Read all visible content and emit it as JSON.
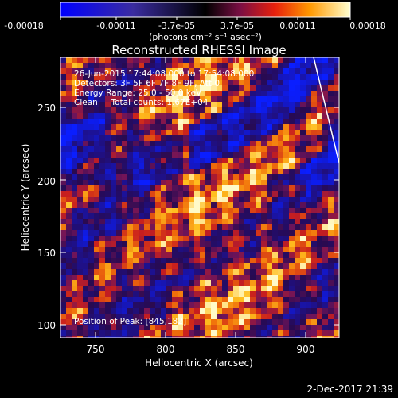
{
  "colorbar": {
    "tick_labels": [
      "-0.00018",
      "-0.00011",
      "-3.7e-05",
      "3.7e-05",
      "0.00011",
      "0.00018"
    ],
    "unit_label": "(photons cm⁻² s⁻¹ asec⁻²)",
    "range": [
      -0.00018,
      0.00018
    ]
  },
  "plot": {
    "title": "Reconstructed RHESSI Image",
    "xlabel": "Heliocentric X (arcsec)",
    "ylabel": "Heliocentric Y (arcsec)",
    "x_ticks": [
      "750",
      "800",
      "850",
      "900"
    ],
    "y_ticks": [
      "100",
      "150",
      "200",
      "250"
    ],
    "xlim": [
      727,
      920
    ],
    "ylim": [
      92,
      286
    ]
  },
  "annotations": {
    "time_range": "26-Jun-2015 17:44:08.000 to 17:54:08.000",
    "detectors": "Detectors: 3F 5F 6F 7F 8F 9F, Att 0",
    "energy_range": "Energy Range: 25.0 - 50.0 keV",
    "method_counts": "Clean     Total counts: 1.67E+04",
    "position": "Position of Peak: [845,182]"
  },
  "footer": {
    "timestamp": "2-Dec-2017 21:39"
  }
}
